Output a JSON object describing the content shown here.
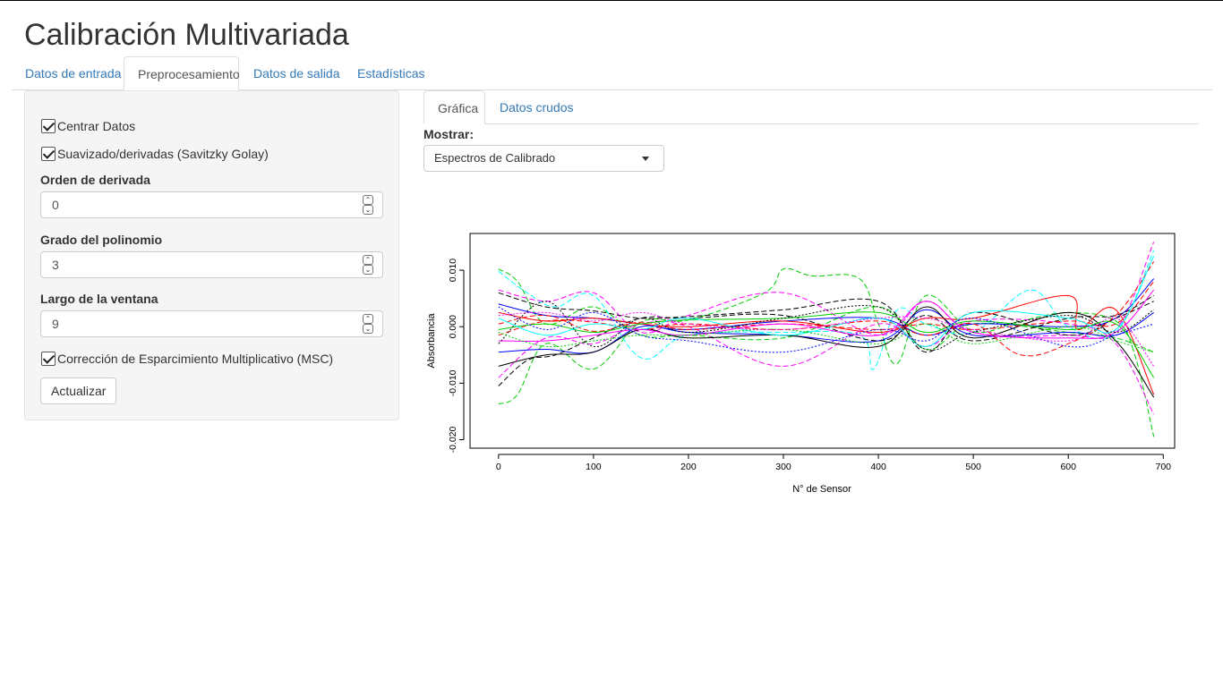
{
  "app": {
    "title": "Calibración Multivariada"
  },
  "main_tabs": [
    {
      "label": "Datos de entrada",
      "active": false
    },
    {
      "label": "Preprocesamiento",
      "active": true
    },
    {
      "label": "Datos de salida",
      "active": false
    },
    {
      "label": "Estadísticas",
      "active": false
    }
  ],
  "sidebar": {
    "center_data": {
      "label": "Centrar Datos",
      "checked": true
    },
    "savgol": {
      "label": "Suavizado/derivadas (Savitzky Golay)",
      "checked": true
    },
    "deriv_order": {
      "label": "Orden de derivada",
      "value": "0"
    },
    "poly_degree": {
      "label": "Grado del polinomio",
      "value": "3"
    },
    "window_length": {
      "label": "Largo de la ventana",
      "value": "9"
    },
    "msc": {
      "label": "Corrección de Esparcimiento Multiplicativo (MSC)",
      "checked": true
    },
    "update_label": "Actualizar"
  },
  "sub_tabs": [
    {
      "label": "Gráfica",
      "active": true
    },
    {
      "label": "Datos crudos",
      "active": false
    }
  ],
  "show": {
    "label": "Mostrar:",
    "selected": "Espectros de Calibrado"
  },
  "icons": {
    "dropdown": "caret-down-icon",
    "spin_up": "chevron-up-icon",
    "spin_down": "chevron-down-icon",
    "checkbox": "checkmark-icon"
  },
  "chart_data": {
    "type": "line",
    "title": "",
    "xlabel": "N° de Sensor",
    "ylabel": "Absorbancia",
    "xlim": [
      -30,
      712
    ],
    "ylim": [
      -0.0215,
      0.0165
    ],
    "xticks": [
      "0",
      "100",
      "200",
      "300",
      "400",
      "500",
      "600",
      "700"
    ],
    "xtick_values": [
      0,
      100,
      200,
      300,
      400,
      500,
      600,
      700
    ],
    "yticks": [
      "-0.020",
      "-0.010",
      "0.000",
      "0.010"
    ],
    "ytick_values": [
      -0.02,
      -0.01,
      0.0,
      0.01
    ],
    "grid": false,
    "x_range_of_series": [
      0,
      690
    ],
    "series_count": 60,
    "palette": [
      "#000000",
      "#ff0000",
      "#00cd00",
      "#0000ff",
      "#00ffff",
      "#ff00ff",
      "#000000",
      "#ff0000"
    ],
    "note_values": "Many overlapping calibration spectra; individual values approximated",
    "series": [
      {
        "color": "#00cd00",
        "dash": "dashed",
        "values": [
          [
            0,
            -0.0137
          ],
          [
            20,
            -0.012
          ],
          [
            50,
            -0.003
          ],
          [
            100,
            -0.0075
          ],
          [
            150,
            0.0008
          ],
          [
            200,
            0.0012
          ],
          [
            280,
            0.006
          ],
          [
            300,
            0.0102
          ],
          [
            330,
            0.009
          ],
          [
            380,
            0.0085
          ],
          [
            400,
            0.0005
          ],
          [
            420,
            -0.0065
          ],
          [
            450,
            0.0055
          ],
          [
            500,
            -0.0008
          ],
          [
            550,
            0.001
          ],
          [
            600,
            0.0025
          ],
          [
            650,
            0.001
          ],
          [
            670,
            -0.005
          ],
          [
            690,
            -0.0195
          ]
        ]
      },
      {
        "color": "#00cd00",
        "dash": "dashed",
        "values": [
          [
            0,
            0.0102
          ],
          [
            20,
            0.008
          ],
          [
            50,
            0.0005
          ],
          [
            100,
            0.0035
          ],
          [
            150,
            -0.0015
          ],
          [
            200,
            -0.0015
          ],
          [
            300,
            -0.002
          ],
          [
            400,
            0.0035
          ],
          [
            450,
            -0.004
          ],
          [
            500,
            0.0005
          ],
          [
            600,
            -0.001
          ],
          [
            650,
            -0.002
          ],
          [
            690,
            -0.0045
          ]
        ]
      },
      {
        "color": "#00ffff",
        "dash": "dashed",
        "values": [
          [
            0,
            0.0098
          ],
          [
            30,
            0.006
          ],
          [
            60,
            0.0035
          ],
          [
            100,
            0.0055
          ],
          [
            150,
            -0.0055
          ],
          [
            200,
            -0.0015
          ],
          [
            300,
            -0.001
          ],
          [
            380,
            -0.0015
          ],
          [
            395,
            -0.0075
          ],
          [
            420,
            0.003
          ],
          [
            450,
            0.0005
          ],
          [
            500,
            -0.001
          ],
          [
            560,
            0.0065
          ],
          [
            600,
            0.0
          ],
          [
            650,
            -0.001
          ],
          [
            690,
            0.0135
          ]
        ]
      },
      {
        "color": "#ff00ff",
        "dash": "dashed",
        "values": [
          [
            0,
            0.0065
          ],
          [
            50,
            0.0045
          ],
          [
            100,
            0.006
          ],
          [
            150,
            -0.001
          ],
          [
            200,
            0.002
          ],
          [
            300,
            0.006
          ],
          [
            400,
            -0.0015
          ],
          [
            450,
            0.0045
          ],
          [
            500,
            -0.001
          ],
          [
            600,
            -0.0015
          ],
          [
            650,
            -0.0005
          ],
          [
            690,
            0.015
          ]
        ]
      },
      {
        "color": "#ff00ff",
        "dash": "dashed",
        "values": [
          [
            0,
            -0.009
          ],
          [
            50,
            -0.002
          ],
          [
            100,
            -0.003
          ],
          [
            150,
            0.0005
          ],
          [
            200,
            0.0
          ],
          [
            300,
            -0.007
          ],
          [
            400,
            0.0005
          ],
          [
            450,
            -0.0035
          ],
          [
            500,
            0.001
          ],
          [
            600,
            0.0005
          ],
          [
            650,
            -0.003
          ],
          [
            690,
            -0.0155
          ]
        ]
      },
      {
        "color": "#0000ff",
        "dash": "solid",
        "values": [
          [
            0,
            0.004
          ],
          [
            50,
            0.002
          ],
          [
            100,
            0.0015
          ],
          [
            150,
            0.0005
          ],
          [
            200,
            -0.0005
          ],
          [
            300,
            0.001
          ],
          [
            400,
            0.0015
          ],
          [
            450,
            -0.0015
          ],
          [
            500,
            0.0005
          ],
          [
            600,
            0.0
          ],
          [
            650,
            0.0015
          ],
          [
            690,
            0.0085
          ]
        ]
      },
      {
        "color": "#0000ff",
        "dash": "solid",
        "values": [
          [
            0,
            -0.0045
          ],
          [
            50,
            -0.004
          ],
          [
            100,
            -0.0045
          ],
          [
            150,
            0.0
          ],
          [
            200,
            -0.001
          ],
          [
            300,
            -0.0015
          ],
          [
            400,
            -0.0025
          ],
          [
            450,
            0.003
          ],
          [
            500,
            -0.0015
          ],
          [
            600,
            -0.001
          ],
          [
            650,
            -0.0015
          ],
          [
            690,
            0.0025
          ]
        ]
      },
      {
        "color": "#000000",
        "dash": "solid",
        "values": [
          [
            0,
            -0.007
          ],
          [
            50,
            -0.005
          ],
          [
            100,
            -0.0045
          ],
          [
            150,
            -0.0005
          ],
          [
            200,
            -0.002
          ],
          [
            300,
            -0.0015
          ],
          [
            400,
            -0.0035
          ],
          [
            450,
            0.0035
          ],
          [
            500,
            -0.002
          ],
          [
            600,
            0.0025
          ],
          [
            650,
            -0.0025
          ],
          [
            690,
            -0.0125
          ]
        ]
      },
      {
        "color": "#000000",
        "dash": "dashed",
        "values": [
          [
            0,
            -0.0105
          ],
          [
            30,
            -0.006
          ],
          [
            60,
            -0.005
          ],
          [
            100,
            -0.002
          ],
          [
            150,
            0.0015
          ],
          [
            200,
            0.0015
          ],
          [
            300,
            0.002
          ],
          [
            400,
            -0.0025
          ],
          [
            450,
            0.002
          ],
          [
            500,
            -0.0025
          ],
          [
            600,
            0.0015
          ],
          [
            650,
            0.002
          ],
          [
            690,
            0.0055
          ]
        ]
      },
      {
        "color": "#000000",
        "dash": "dashed",
        "values": [
          [
            0,
            0.006
          ],
          [
            50,
            0.0035
          ],
          [
            100,
            0.0028
          ],
          [
            150,
            0.0015
          ],
          [
            200,
            0.0018
          ],
          [
            300,
            0.003
          ],
          [
            400,
            0.0045
          ],
          [
            450,
            -0.0045
          ],
          [
            500,
            0.0025
          ],
          [
            600,
            -0.0015
          ],
          [
            650,
            0.0015
          ],
          [
            690,
            0.0045
          ]
        ]
      },
      {
        "color": "#ff0000",
        "dash": "solid",
        "values": [
          [
            0,
            0.0025
          ],
          [
            50,
            0.001
          ],
          [
            100,
            0.0015
          ],
          [
            150,
            0.0005
          ],
          [
            200,
            0.0
          ],
          [
            300,
            0.001
          ],
          [
            400,
            -0.001
          ],
          [
            450,
            0.0015
          ],
          [
            500,
            0.0015
          ],
          [
            600,
            0.0055
          ],
          [
            610,
            -0.0005
          ],
          [
            650,
            0.003
          ],
          [
            690,
            -0.012
          ]
        ]
      },
      {
        "color": "#ff0000",
        "dash": "dashed",
        "values": [
          [
            0,
            -0.0015
          ],
          [
            50,
            0.001
          ],
          [
            100,
            0.0008
          ],
          [
            150,
            -0.0005
          ],
          [
            200,
            0.0005
          ],
          [
            300,
            -0.0005
          ],
          [
            400,
            0.001
          ],
          [
            450,
            -0.0015
          ],
          [
            500,
            0.0005
          ],
          [
            550,
            -0.005
          ],
          [
            600,
            -0.003
          ],
          [
            650,
            0.002
          ],
          [
            690,
            0.0115
          ]
        ]
      },
      {
        "color": "#ff0000",
        "dash": "dashed",
        "values": [
          [
            0,
            0.0005
          ],
          [
            50,
            0.002
          ],
          [
            100,
            -0.0008
          ],
          [
            150,
            0.0008
          ],
          [
            200,
            -0.0005
          ],
          [
            300,
            0.0005
          ],
          [
            400,
            -0.0005
          ],
          [
            450,
            0.0005
          ],
          [
            500,
            -0.0005
          ],
          [
            600,
            0.001
          ],
          [
            650,
            0.0005
          ],
          [
            690,
            0.008
          ]
        ]
      },
      {
        "color": "#00cd00",
        "dash": "solid",
        "values": [
          [
            0,
            -0.0005
          ],
          [
            50,
            0.0005
          ],
          [
            100,
            -0.001
          ],
          [
            150,
            0.0005
          ],
          [
            200,
            0.0012
          ],
          [
            300,
            0.0015
          ],
          [
            400,
            0.0025
          ],
          [
            450,
            -0.001
          ],
          [
            500,
            0.001
          ],
          [
            600,
            -0.0005
          ],
          [
            650,
            0.0005
          ],
          [
            690,
            -0.009
          ]
        ]
      },
      {
        "color": "#00ffff",
        "dash": "solid",
        "values": [
          [
            0,
            0.0015
          ],
          [
            50,
            -0.0015
          ],
          [
            100,
            0.0005
          ],
          [
            150,
            -0.0005
          ],
          [
            200,
            0.0015
          ],
          [
            300,
            -0.0015
          ],
          [
            400,
            0.0015
          ],
          [
            450,
            -0.0035
          ],
          [
            500,
            0.0025
          ],
          [
            600,
            0.0015
          ],
          [
            650,
            -0.0005
          ],
          [
            690,
            0.0125
          ]
        ]
      },
      {
        "color": "#ff00ff",
        "dash": "solid",
        "values": [
          [
            0,
            -0.0025
          ],
          [
            50,
            -0.0025
          ],
          [
            100,
            -0.0015
          ],
          [
            150,
            -0.0005
          ],
          [
            200,
            -0.0015
          ],
          [
            300,
            0.0005
          ],
          [
            400,
            -0.0015
          ],
          [
            450,
            0.0045
          ],
          [
            500,
            -0.001
          ],
          [
            600,
            -0.002
          ],
          [
            650,
            -0.001
          ],
          [
            690,
            0.0065
          ]
        ]
      },
      {
        "color": "#0000ff",
        "dash": "dotted",
        "values": [
          [
            0,
            0.0035
          ],
          [
            50,
            -0.0005
          ],
          [
            100,
            0.0025
          ],
          [
            150,
            -0.0015
          ],
          [
            200,
            -0.0025
          ],
          [
            300,
            -0.0045
          ],
          [
            400,
            -0.0005
          ],
          [
            450,
            -0.0025
          ],
          [
            500,
            0.0015
          ],
          [
            600,
            -0.0035
          ],
          [
            650,
            -0.0015
          ],
          [
            690,
            0.0005
          ]
        ]
      },
      {
        "color": "#000000",
        "dash": "dotted",
        "values": [
          [
            0,
            -0.003
          ],
          [
            50,
            0.0045
          ],
          [
            100,
            -0.0035
          ],
          [
            150,
            0.0015
          ],
          [
            200,
            -0.001
          ],
          [
            300,
            0.0015
          ],
          [
            400,
            0.0035
          ],
          [
            450,
            -0.004
          ],
          [
            500,
            -0.001
          ],
          [
            600,
            0.002
          ],
          [
            650,
            -0.001
          ],
          [
            690,
            0.003
          ]
        ]
      },
      {
        "color": "#00cd00",
        "dash": "dotted",
        "values": [
          [
            0,
            -0.001
          ],
          [
            50,
            -0.0035
          ],
          [
            100,
            -0.0025
          ],
          [
            150,
            -0.0015
          ],
          [
            200,
            -0.0015
          ],
          [
            300,
            -0.0005
          ],
          [
            400,
            -0.003
          ],
          [
            450,
            0.0005
          ],
          [
            500,
            -0.003
          ],
          [
            600,
            0.0
          ],
          [
            650,
            -0.0025
          ],
          [
            690,
            -0.0045
          ]
        ]
      },
      {
        "color": "#ff00ff",
        "dash": "dotted",
        "values": [
          [
            0,
            0.002
          ],
          [
            50,
            0.0025
          ],
          [
            100,
            0.001
          ],
          [
            150,
            0.0025
          ],
          [
            200,
            0.0005
          ],
          [
            300,
            -0.0005
          ],
          [
            400,
            0.0015
          ],
          [
            450,
            0.0015
          ],
          [
            500,
            -0.0005
          ],
          [
            600,
            -0.0025
          ],
          [
            650,
            0.0015
          ],
          [
            690,
            -0.007
          ]
        ]
      }
    ]
  }
}
